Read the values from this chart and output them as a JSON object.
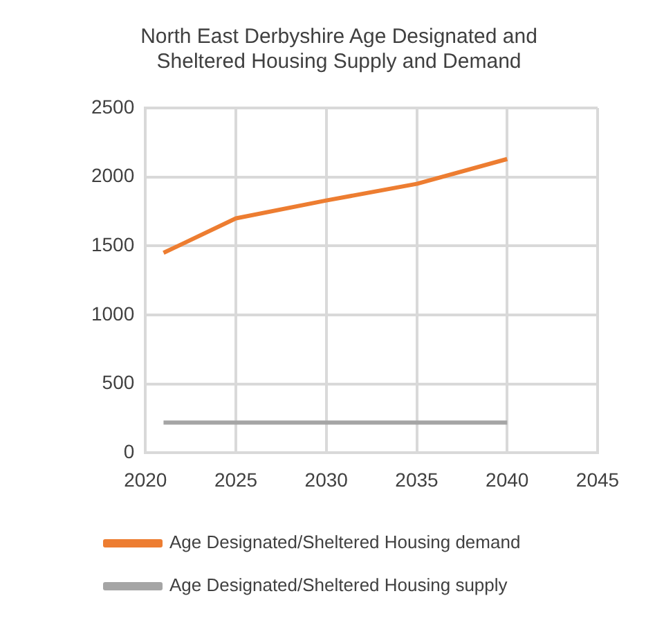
{
  "chart_data": {
    "type": "line",
    "title": "North East Derbyshire Age Designated and Sheltered Housing Supply and Demand",
    "x": [
      2021,
      2025,
      2030,
      2035,
      2040
    ],
    "series": [
      {
        "name": "Age Designated/Sheltered Housing demand",
        "color": "#ed7d31",
        "values": [
          1450,
          1700,
          1830,
          1950,
          2130
        ]
      },
      {
        "name": "Age Designated/Sheltered Housing supply",
        "color": "#a5a5a5",
        "values": [
          220,
          220,
          220,
          220,
          220
        ]
      }
    ],
    "xlim": [
      2020,
      2045
    ],
    "xticks": [
      2020,
      2025,
      2030,
      2035,
      2040,
      2045
    ],
    "ylim": [
      0,
      2500
    ],
    "yticks": [
      0,
      500,
      1000,
      1500,
      2000,
      2500
    ],
    "grid": true,
    "legend": "bottom",
    "marker": "none",
    "line_style": "solid"
  }
}
